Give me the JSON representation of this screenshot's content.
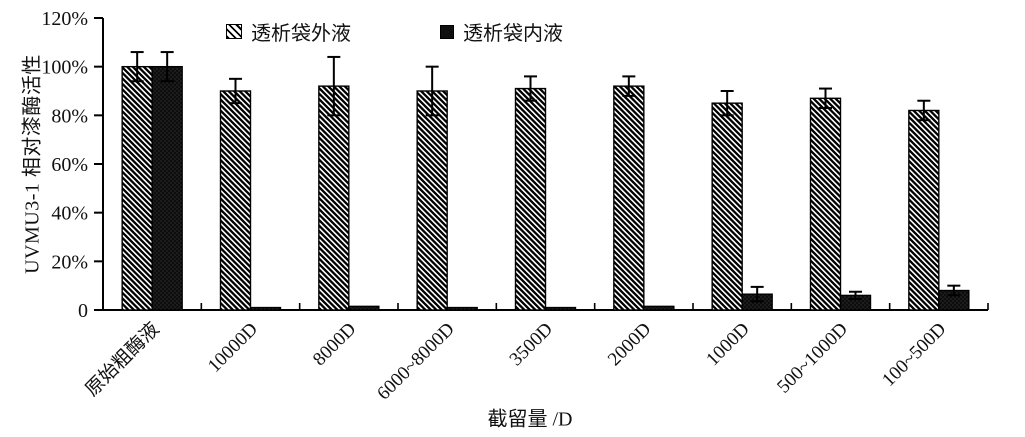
{
  "chart_data": {
    "type": "bar",
    "title": "",
    "xlabel": "截留量 /D",
    "ylabel": "UVMU3-1 相对漆酶活性",
    "ylim": [
      0,
      120
    ],
    "ytick_step": 20,
    "ytick_labels": [
      "0",
      "20%",
      "40%",
      "60%",
      "80%",
      "100%",
      "120%"
    ],
    "grid": false,
    "legend_position": "top-center",
    "categories": [
      "原始粗酶液",
      "10000D",
      "8000D",
      "6000~8000D",
      "3500D",
      "2000D",
      "1000D",
      "500~1000D",
      "100~500D"
    ],
    "series": [
      {
        "name": "透析袋外液",
        "style": "diagonal-hatch",
        "values": [
          100,
          90,
          92,
          90,
          91,
          92,
          85,
          87,
          82
        ],
        "errors": [
          6,
          5,
          12,
          10,
          5,
          4,
          5,
          4,
          4
        ]
      },
      {
        "name": "透析袋内液",
        "style": "solid-black",
        "values": [
          100,
          1,
          1.5,
          1,
          1,
          1.5,
          6.5,
          6,
          8
        ],
        "errors": [
          6,
          0,
          0,
          0,
          0,
          0,
          3,
          1.5,
          2
        ]
      }
    ],
    "colors": {
      "axis": "#000000",
      "bar_outline": "#000000",
      "hatch_stroke": "#000000",
      "solid_fill": "#0d0d0d",
      "background": "#ffffff",
      "text": "#111111"
    }
  }
}
